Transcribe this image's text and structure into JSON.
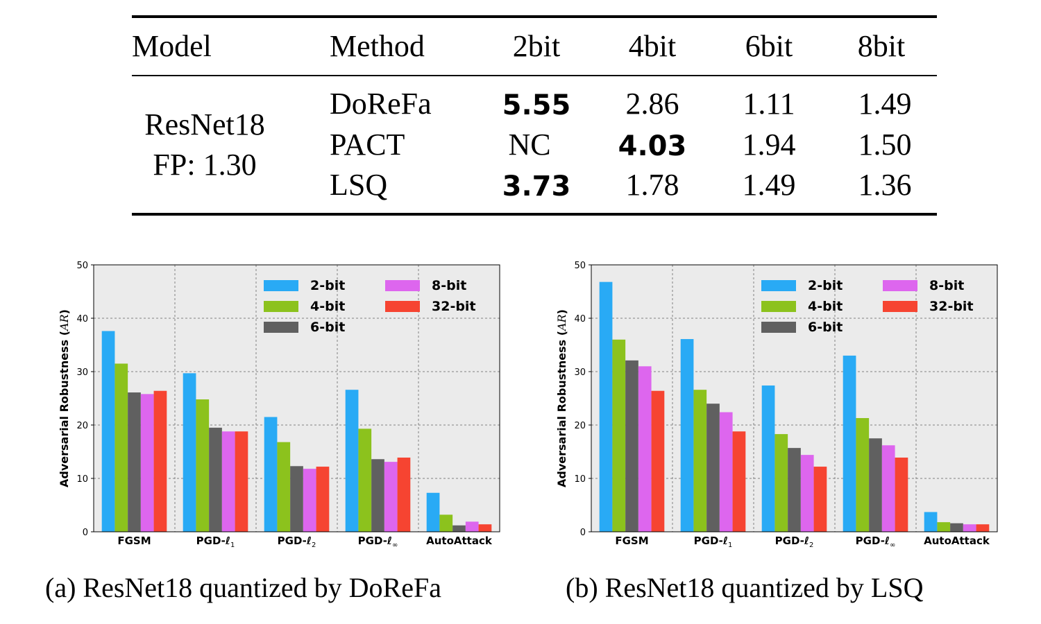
{
  "table": {
    "headers": [
      "Model",
      "Method",
      "2bit",
      "4bit",
      "6bit",
      "8bit"
    ],
    "model_name": "ResNet18",
    "model_fp": "FP: 1.30",
    "rows": [
      {
        "method": "DoReFa",
        "values": [
          "5.55",
          "2.86",
          "1.11",
          "1.49"
        ],
        "bold_index": 0
      },
      {
        "method": "PACT",
        "values": [
          "NC",
          "4.03",
          "1.94",
          "1.50"
        ],
        "bold_index": 1
      },
      {
        "method": "LSQ",
        "values": [
          "3.73",
          "1.78",
          "1.49",
          "1.36"
        ],
        "bold_index": 0
      }
    ]
  },
  "captions": {
    "a": "(a)  ResNet18 quantized by DoReFa",
    "b": "(b)  ResNet18 quantized by LSQ"
  },
  "chart_data": [
    {
      "type": "bar",
      "ylabel": "Adversarial Robustness (AR)",
      "ylim": [
        0,
        50
      ],
      "yticks": [
        0,
        10,
        20,
        30,
        40,
        50
      ],
      "grid": true,
      "legend_position": "top-right",
      "categories": [
        "FGSM",
        "PGD-ℓ1",
        "PGD-ℓ2",
        "PGD-ℓ∞",
        "AutoAttack"
      ],
      "series": [
        {
          "name": "2-bit",
          "color": "#29aaf5",
          "values": [
            37.6,
            29.7,
            21.5,
            26.6,
            7.3
          ]
        },
        {
          "name": "4-bit",
          "color": "#8cc21d",
          "values": [
            31.5,
            24.8,
            16.8,
            19.3,
            3.2
          ]
        },
        {
          "name": "6-bit",
          "color": "#606060",
          "values": [
            26.1,
            19.5,
            12.3,
            13.6,
            1.2
          ]
        },
        {
          "name": "8-bit",
          "color": "#dd66ee",
          "values": [
            25.8,
            18.8,
            11.8,
            13.1,
            1.9
          ]
        },
        {
          "name": "32-bit",
          "color": "#f64431",
          "values": [
            26.4,
            18.8,
            12.2,
            13.9,
            1.4
          ]
        }
      ]
    },
    {
      "type": "bar",
      "ylabel": "Adversarial Robustness (AR)",
      "ylim": [
        0,
        50
      ],
      "yticks": [
        0,
        10,
        20,
        30,
        40,
        50
      ],
      "grid": true,
      "legend_position": "top-right",
      "categories": [
        "FGSM",
        "PGD-ℓ1",
        "PGD-ℓ2",
        "PGD-ℓ∞",
        "AutoAttack"
      ],
      "series": [
        {
          "name": "2-bit",
          "color": "#29aaf5",
          "values": [
            46.8,
            36.1,
            27.4,
            33.0,
            3.7
          ]
        },
        {
          "name": "4-bit",
          "color": "#8cc21d",
          "values": [
            36.0,
            26.6,
            18.3,
            21.3,
            1.8
          ]
        },
        {
          "name": "6-bit",
          "color": "#606060",
          "values": [
            32.1,
            24.0,
            15.7,
            17.5,
            1.6
          ]
        },
        {
          "name": "8-bit",
          "color": "#dd66ee",
          "values": [
            31.0,
            22.4,
            14.4,
            16.2,
            1.4
          ]
        },
        {
          "name": "32-bit",
          "color": "#f64431",
          "values": [
            26.4,
            18.8,
            12.2,
            13.9,
            1.4
          ]
        }
      ]
    }
  ]
}
